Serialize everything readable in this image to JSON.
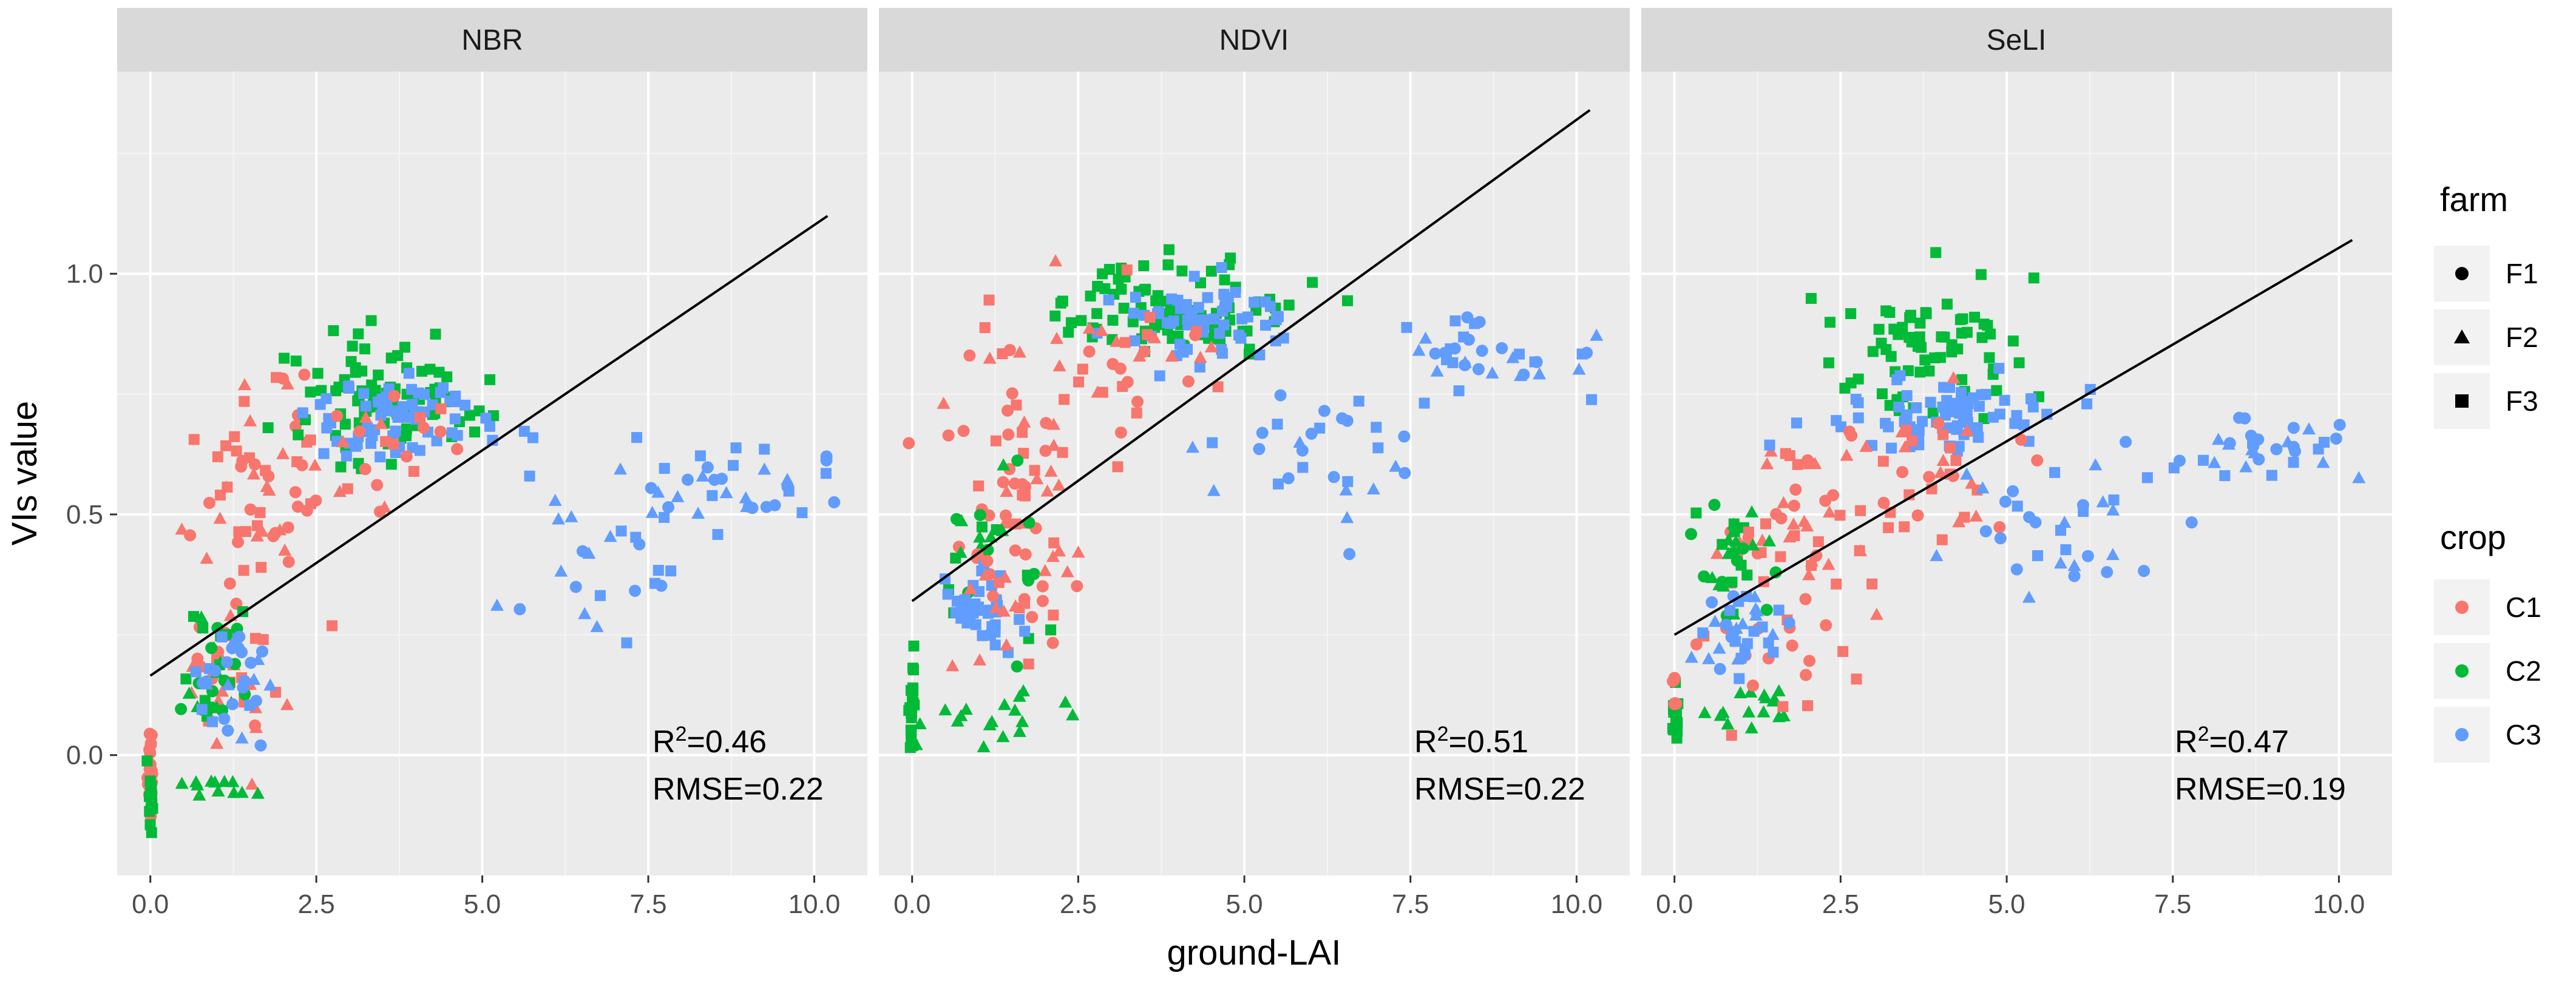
{
  "chart_data": {
    "type": "scatter",
    "xlabel": "ground-LAI",
    "ylabel": "VIs value",
    "xlim": [
      -0.5,
      10.8
    ],
    "ylim": [
      -0.25,
      1.42
    ],
    "x_ticks": [
      "0.0",
      "2.5",
      "5.0",
      "7.5",
      "10.0"
    ],
    "y_ticks": [
      "0.0",
      "0.5",
      "1.0"
    ],
    "colors": {
      "C1": "#F8766D",
      "C2": "#00BA38",
      "C3": "#619CFF",
      "fit": "#000000",
      "panel_bg": "#EBEBEB",
      "strip_bg": "#D9D9D9"
    },
    "legend": {
      "farm": {
        "title": "farm",
        "items": [
          {
            "label": "F1",
            "shape": "circle"
          },
          {
            "label": "F2",
            "shape": "triangle"
          },
          {
            "label": "F3",
            "shape": "square"
          }
        ]
      },
      "crop": {
        "title": "crop",
        "items": [
          {
            "label": "C1",
            "color": "#F8766D"
          },
          {
            "label": "C2",
            "color": "#00BA38"
          },
          {
            "label": "C3",
            "color": "#619CFF"
          }
        ]
      }
    },
    "panels": [
      {
        "name": "NBR",
        "fit": {
          "x0": 0.0,
          "y0": 0.165,
          "x1": 10.2,
          "y1": 1.12
        },
        "r2": "0.46",
        "rmse": "RMSE=0.22",
        "clusters": [
          {
            "color": "C1",
            "shape": "circle",
            "n": 30,
            "xc": 0.0,
            "xs": 0.02,
            "yc": -0.03,
            "ys": 0.05
          },
          {
            "color": "C2",
            "shape": "square",
            "n": 12,
            "xc": 0.0,
            "xs": 0.02,
            "yc": -0.09,
            "ys": 0.04
          },
          {
            "color": "C1",
            "shape": "mixed",
            "n": 55,
            "xc": 1.6,
            "xs": 0.45,
            "yc": 0.55,
            "ys": 0.12
          },
          {
            "color": "C1",
            "shape": "mixed",
            "n": 35,
            "xc": 1.2,
            "xs": 0.4,
            "yc": 0.15,
            "ys": 0.08
          },
          {
            "color": "C2",
            "shape": "mixed",
            "n": 30,
            "xc": 1.0,
            "xs": 0.3,
            "yc": 0.18,
            "ys": 0.07
          },
          {
            "color": "C2",
            "shape": "triangle",
            "n": 12,
            "xc": 1.0,
            "xs": 0.35,
            "yc": -0.06,
            "ys": 0.02
          },
          {
            "color": "C3",
            "shape": "mixed",
            "n": 30,
            "xc": 1.2,
            "xs": 0.35,
            "yc": 0.15,
            "ys": 0.06
          },
          {
            "color": "C2",
            "shape": "square",
            "n": 90,
            "xc": 3.6,
            "xs": 0.8,
            "yc": 0.75,
            "ys": 0.06
          },
          {
            "color": "C3",
            "shape": "square",
            "n": 70,
            "xc": 3.8,
            "xs": 0.7,
            "yc": 0.7,
            "ys": 0.05
          },
          {
            "color": "C1",
            "shape": "mixed",
            "n": 25,
            "xc": 3.2,
            "xs": 0.9,
            "yc": 0.62,
            "ys": 0.08
          },
          {
            "color": "C3",
            "shape": "mixed",
            "n": 25,
            "xc": 6.6,
            "xs": 0.6,
            "yc": 0.38,
            "ys": 0.11
          },
          {
            "color": "C3",
            "shape": "mixed",
            "n": 35,
            "xc": 8.8,
            "xs": 0.8,
            "yc": 0.57,
            "ys": 0.05
          }
        ]
      },
      {
        "name": "NDVI",
        "fit": {
          "x0": 0.0,
          "y0": 0.32,
          "x1": 10.2,
          "y1": 1.34
        },
        "r2": "0.51",
        "rmse": "RMSE=0.22",
        "clusters": [
          {
            "color": "C2",
            "shape": "square",
            "n": 22,
            "xc": 0.0,
            "xs": 0.02,
            "yc": 0.1,
            "ys": 0.05
          },
          {
            "color": "C2",
            "shape": "triangle",
            "n": 18,
            "xc": 1.2,
            "xs": 0.55,
            "yc": 0.08,
            "ys": 0.03
          },
          {
            "color": "C1",
            "shape": "mixed",
            "n": 55,
            "xc": 1.5,
            "xs": 0.5,
            "yc": 0.62,
            "ys": 0.16
          },
          {
            "color": "C2",
            "shape": "mixed",
            "n": 25,
            "xc": 1.2,
            "xs": 0.35,
            "yc": 0.42,
            "ys": 0.09
          },
          {
            "color": "C3",
            "shape": "square",
            "n": 40,
            "xc": 1.0,
            "xs": 0.3,
            "yc": 0.32,
            "ys": 0.04
          },
          {
            "color": "C1",
            "shape": "mixed",
            "n": 25,
            "xc": 1.6,
            "xs": 0.4,
            "yc": 0.3,
            "ys": 0.07
          },
          {
            "color": "C2",
            "shape": "square",
            "n": 95,
            "xc": 4.0,
            "xs": 0.9,
            "yc": 0.93,
            "ys": 0.05
          },
          {
            "color": "C3",
            "shape": "square",
            "n": 65,
            "xc": 4.4,
            "xs": 0.7,
            "yc": 0.9,
            "ys": 0.04
          },
          {
            "color": "C1",
            "shape": "mixed",
            "n": 35,
            "xc": 3.2,
            "xs": 0.8,
            "yc": 0.82,
            "ys": 0.08
          },
          {
            "color": "C3",
            "shape": "mixed",
            "n": 30,
            "xc": 5.8,
            "xs": 1.1,
            "yc": 0.62,
            "ys": 0.08
          },
          {
            "color": "C3",
            "shape": "mixed",
            "n": 35,
            "xc": 8.8,
            "xs": 0.8,
            "yc": 0.83,
            "ys": 0.04
          }
        ]
      },
      {
        "name": "SeLI",
        "fit": {
          "x0": 0.0,
          "y0": 0.25,
          "x1": 10.2,
          "y1": 1.07
        },
        "r2": "0.47",
        "rmse": "RMSE=0.19",
        "clusters": [
          {
            "color": "C2",
            "shape": "square",
            "n": 18,
            "xc": 0.0,
            "xs": 0.02,
            "yc": 0.08,
            "ys": 0.03
          },
          {
            "color": "C1",
            "shape": "circle",
            "n": 6,
            "xc": 0.0,
            "xs": 0.02,
            "yc": 0.12,
            "ys": 0.03
          },
          {
            "color": "C2",
            "shape": "triangle",
            "n": 16,
            "xc": 1.1,
            "xs": 0.45,
            "yc": 0.1,
            "ys": 0.03
          },
          {
            "color": "C1",
            "shape": "mixed",
            "n": 60,
            "xc": 1.7,
            "xs": 0.6,
            "yc": 0.35,
            "ys": 0.14
          },
          {
            "color": "C2",
            "shape": "mixed",
            "n": 30,
            "xc": 0.9,
            "xs": 0.4,
            "yc": 0.4,
            "ys": 0.1
          },
          {
            "color": "C3",
            "shape": "mixed",
            "n": 35,
            "xc": 1.0,
            "xs": 0.3,
            "yc": 0.27,
            "ys": 0.04
          },
          {
            "color": "C2",
            "shape": "square",
            "n": 70,
            "xc": 3.9,
            "xs": 0.9,
            "yc": 0.84,
            "ys": 0.07
          },
          {
            "color": "C3",
            "shape": "square",
            "n": 75,
            "xc": 4.2,
            "xs": 0.8,
            "yc": 0.71,
            "ys": 0.04
          },
          {
            "color": "C1",
            "shape": "mixed",
            "n": 45,
            "xc": 3.6,
            "xs": 0.9,
            "yc": 0.55,
            "ys": 0.07
          },
          {
            "color": "C3",
            "shape": "mixed",
            "n": 30,
            "xc": 5.8,
            "xs": 0.9,
            "yc": 0.48,
            "ys": 0.08
          },
          {
            "color": "C3",
            "shape": "mixed",
            "n": 35,
            "xc": 8.8,
            "xs": 0.8,
            "yc": 0.64,
            "ys": 0.04
          }
        ]
      }
    ]
  }
}
